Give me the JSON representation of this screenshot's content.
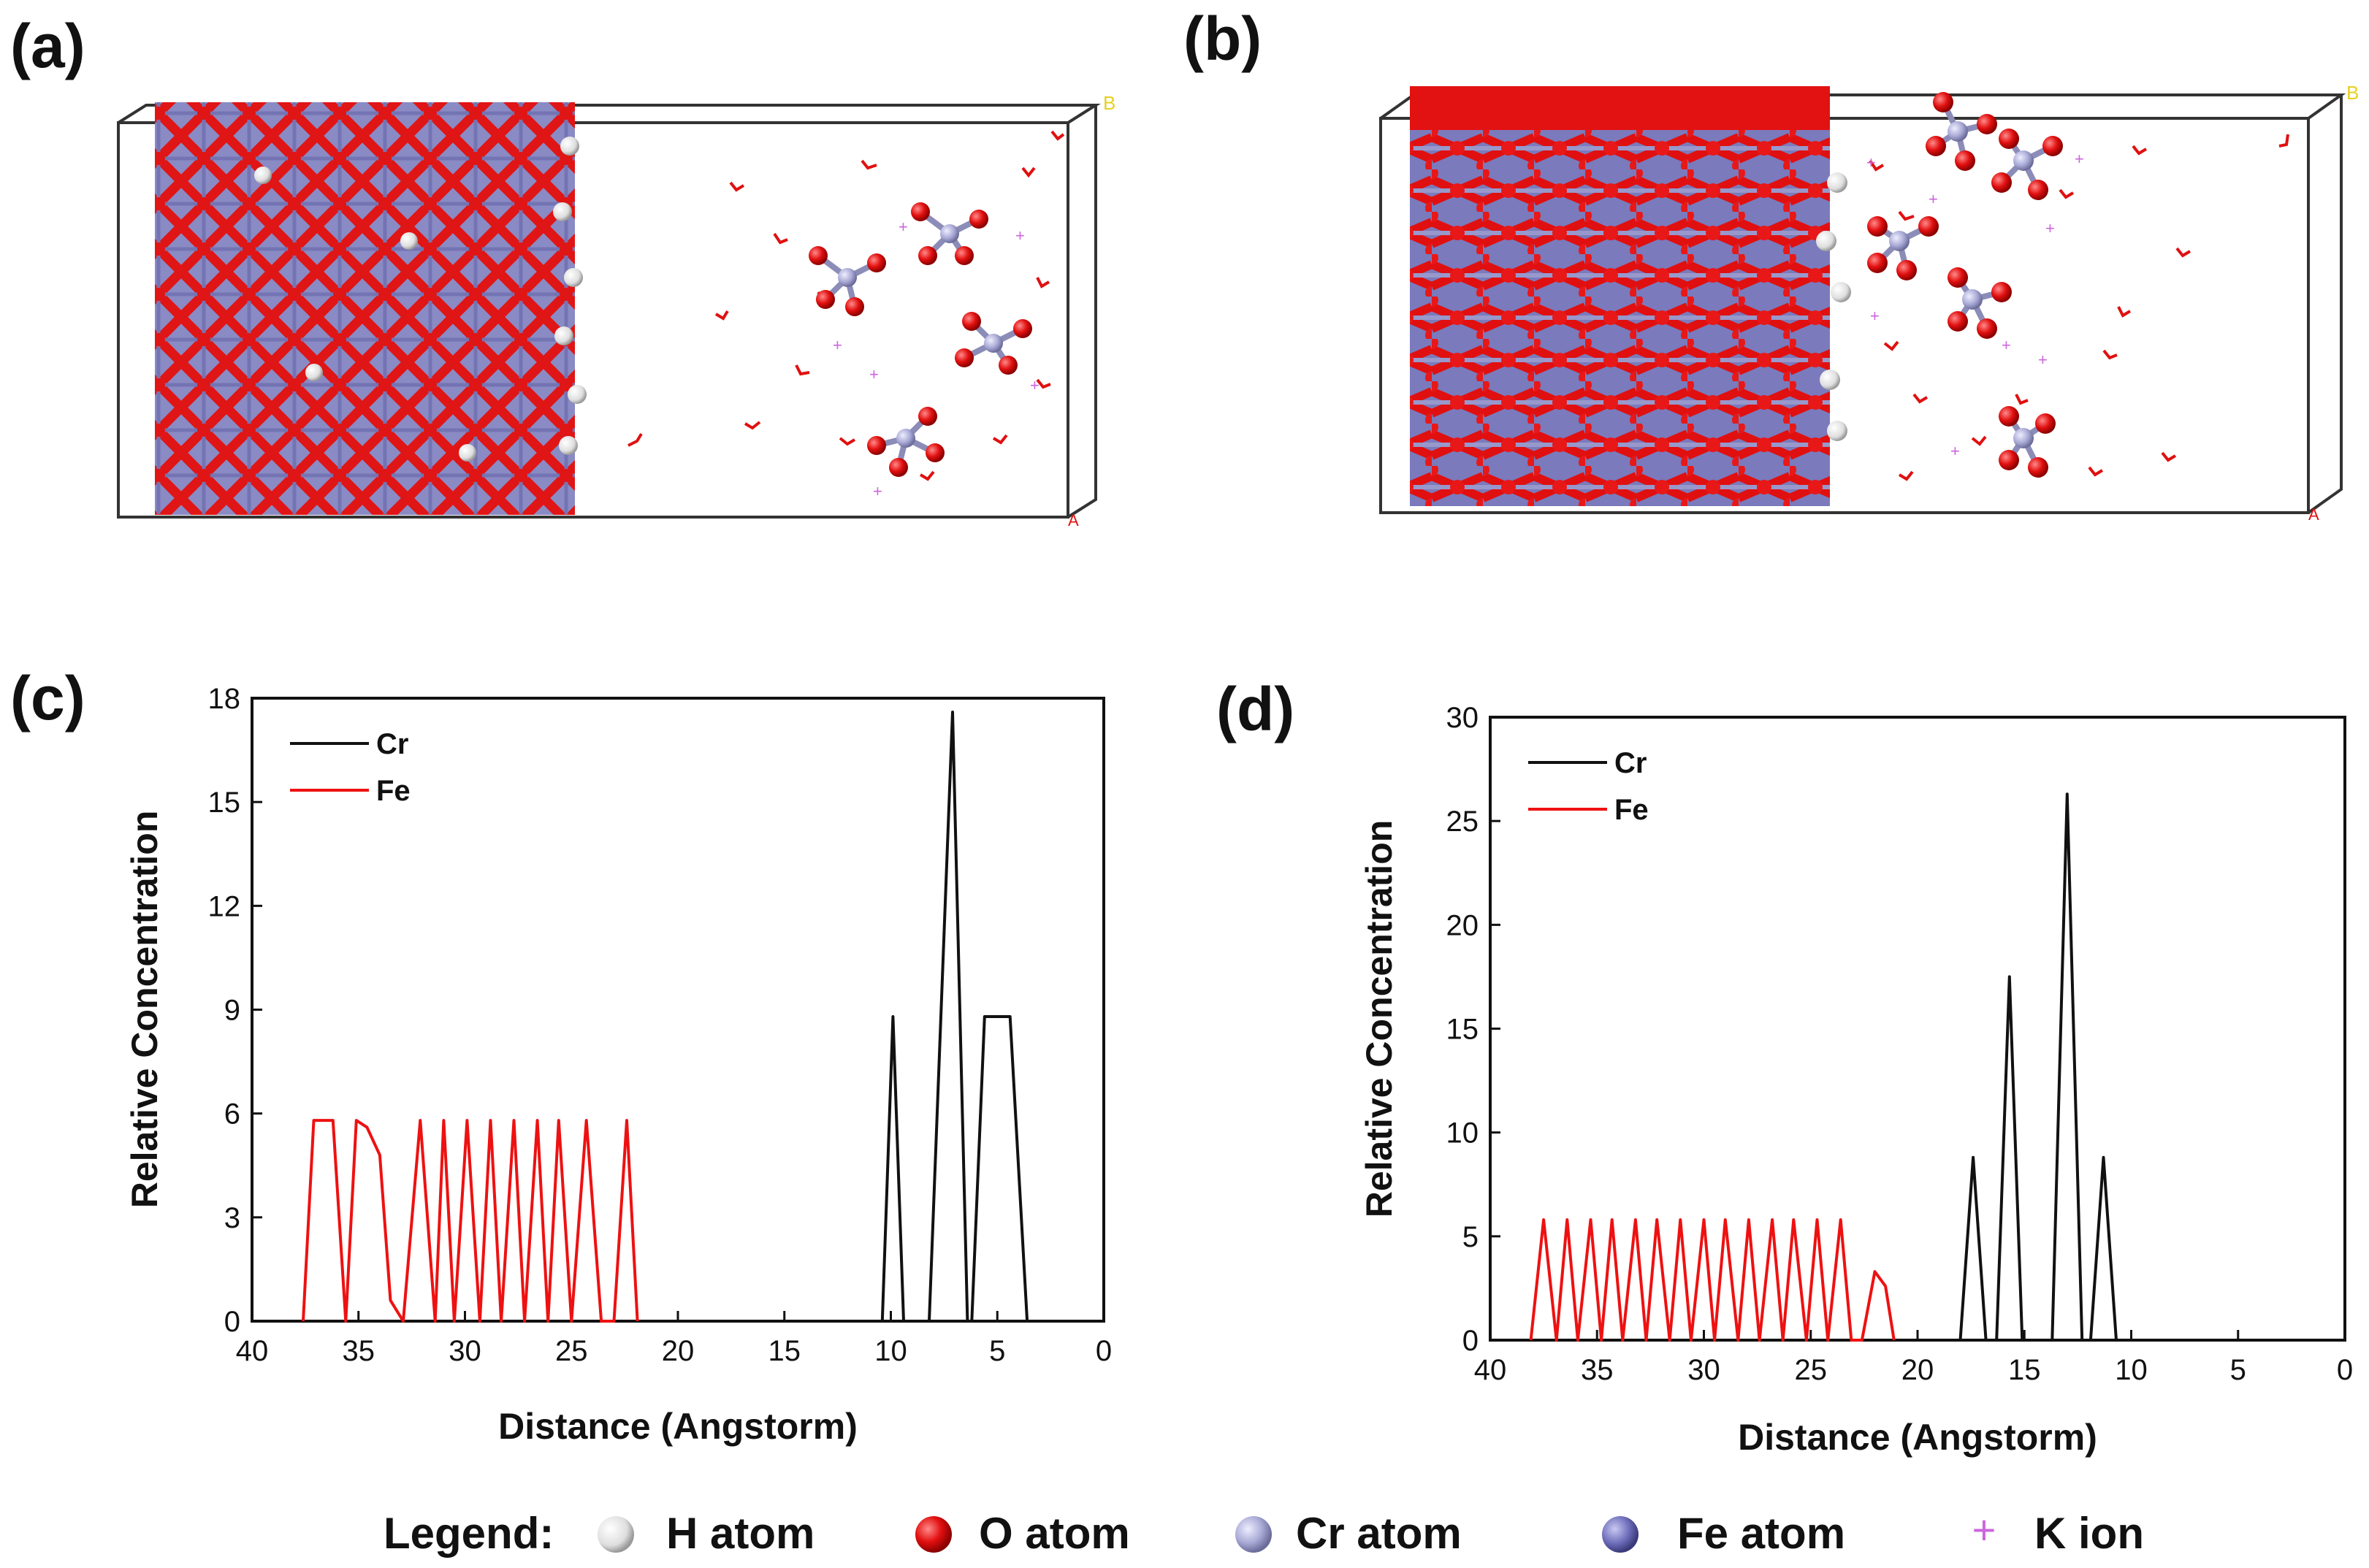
{
  "panels": {
    "a": "(a)",
    "b": "(b)",
    "c": "(c)",
    "d": "(d)"
  },
  "structure_labels": {
    "axis_b": "B",
    "axis_a": "A"
  },
  "colors": {
    "cr_line": "#111111",
    "fe_line": "#ee1111",
    "o_atom": "#ee1111",
    "h_atom": "#f2f2f2",
    "cr_atom": "#a8a8d0",
    "fe_atom": "#7070b8",
    "k_ion": "#cc66dd"
  },
  "chart_data": [
    {
      "id": "c",
      "type": "line",
      "xlabel": "Distance (Angstorm)",
      "ylabel": "Relative Concentration",
      "xlim": [
        40,
        0
      ],
      "ylim": [
        0,
        18
      ],
      "xticks": [
        40,
        35,
        30,
        25,
        20,
        15,
        10,
        5,
        0
      ],
      "yticks": [
        0,
        3,
        6,
        9,
        12,
        15,
        18
      ],
      "legend": "top-left",
      "series": [
        {
          "name": "Cr",
          "color": "#111111",
          "x": [
            10.4,
            9.9,
            9.4,
            8.2,
            7.1,
            6.4,
            6.2,
            5.6,
            4.4,
            3.6
          ],
          "y": [
            0,
            8.8,
            0,
            0,
            17.6,
            0,
            0,
            8.8,
            8.8,
            0
          ]
        },
        {
          "name": "Fe",
          "color": "#ee1111",
          "x": [
            37.6,
            37.1,
            36.2,
            35.6,
            35.1,
            34.6,
            34.0,
            33.5,
            32.9,
            32.1,
            31.4,
            31.0,
            30.5,
            29.9,
            29.3,
            28.8,
            28.3,
            27.7,
            27.2,
            26.6,
            26.1,
            25.6,
            25.0,
            24.3,
            23.6,
            23.0,
            22.4,
            21.9
          ],
          "y": [
            0,
            5.8,
            5.8,
            0,
            5.8,
            5.6,
            4.8,
            0.6,
            0,
            5.8,
            0,
            5.8,
            0,
            5.8,
            0,
            5.8,
            0,
            5.8,
            0,
            5.8,
            0,
            5.8,
            0,
            5.8,
            0,
            0,
            5.8,
            0
          ]
        }
      ]
    },
    {
      "id": "d",
      "type": "line",
      "xlabel": "Distance (Angstorm)",
      "ylabel": "Relative Concentration",
      "xlim": [
        40,
        0
      ],
      "ylim": [
        0,
        30
      ],
      "xticks": [
        40,
        35,
        30,
        25,
        20,
        15,
        10,
        5,
        0
      ],
      "yticks": [
        0,
        5,
        10,
        15,
        20,
        25,
        30
      ],
      "legend": "top-left",
      "series": [
        {
          "name": "Cr",
          "color": "#111111",
          "x": [
            18.0,
            17.4,
            16.8,
            16.3,
            15.7,
            15.1,
            13.7,
            13.0,
            12.3,
            11.9,
            11.3,
            10.7
          ],
          "y": [
            0,
            8.8,
            0,
            0,
            17.5,
            0,
            0,
            26.3,
            0,
            0,
            8.8,
            0
          ],
          "y_peaks_note": ""
        },
        {
          "name": "Fe",
          "color": "#ee1111",
          "x": [
            38.1,
            37.5,
            36.9,
            36.4,
            35.9,
            35.3,
            34.8,
            34.3,
            33.8,
            33.2,
            32.7,
            32.2,
            31.6,
            31.1,
            30.6,
            30.0,
            29.5,
            29.0,
            28.4,
            27.9,
            27.4,
            26.8,
            26.3,
            25.8,
            25.2,
            24.7,
            24.2,
            23.6,
            23.1,
            22.6,
            22.0,
            21.5,
            21.1
          ],
          "y": [
            0,
            5.8,
            0,
            5.8,
            0,
            5.8,
            0,
            5.8,
            0,
            5.8,
            0,
            5.8,
            0,
            5.8,
            0,
            5.8,
            0,
            5.8,
            0,
            5.8,
            0,
            5.8,
            0,
            5.8,
            0,
            5.8,
            0,
            5.8,
            0,
            0,
            3.3,
            2.6,
            0
          ]
        }
      ]
    }
  ],
  "bottom_legend": {
    "title": "Legend:",
    "items": [
      {
        "label": "H atom",
        "icon": "h-atom-sphere"
      },
      {
        "label": "O atom",
        "icon": "o-atom-sphere"
      },
      {
        "label": "Cr atom",
        "icon": "cr-atom-sphere"
      },
      {
        "label": "Fe atom",
        "icon": "fe-atom-sphere"
      },
      {
        "label": "K ion",
        "icon": "k-ion-plus",
        "glyph": "+"
      }
    ]
  }
}
